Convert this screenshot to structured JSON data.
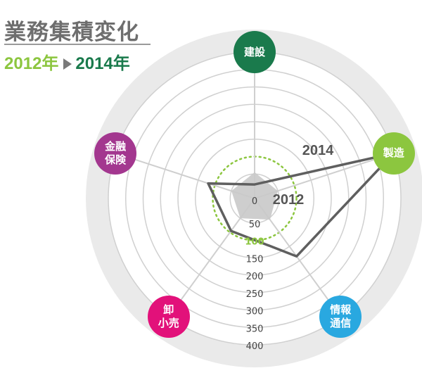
{
  "header": {
    "title": "業務集積変化",
    "year_from": "2012年",
    "year_to": "2014年"
  },
  "colors": {
    "year_2012": "#8cc63f",
    "year_2014": "#1a7a4c",
    "line_2014": "#5f5f5f",
    "area_2012": "#c9c9c9",
    "background_ring": "#eaeaea",
    "grid": "#d0d0d0",
    "spoke": "#cfcfcf"
  },
  "chart_data": {
    "type": "radar",
    "axes": [
      {
        "label": "建設",
        "color": "#1a7a4c"
      },
      {
        "label": "製造",
        "color": "#8cc63f"
      },
      {
        "label": "情報\n通信",
        "color": "#29a8e0"
      },
      {
        "label": "卸\n小売",
        "color": "#e2117a"
      },
      {
        "label": "金融\n保険",
        "color": "#a3378f"
      }
    ],
    "rlim": [
      0,
      400
    ],
    "ticks": [
      0,
      50,
      100,
      150,
      200,
      250,
      300,
      350,
      400
    ],
    "tick_labels": [
      "0",
      "50",
      "100",
      "150",
      "200",
      "250",
      "300",
      "350",
      "400"
    ],
    "highlight_tick": 100,
    "series": [
      {
        "name": "2012",
        "values": [
          55,
          50,
          55,
          50,
          50
        ],
        "style": "filled-area"
      },
      {
        "name": "2014",
        "values": [
          20,
          400,
          185,
          95,
          120
        ],
        "style": "line"
      }
    ]
  }
}
